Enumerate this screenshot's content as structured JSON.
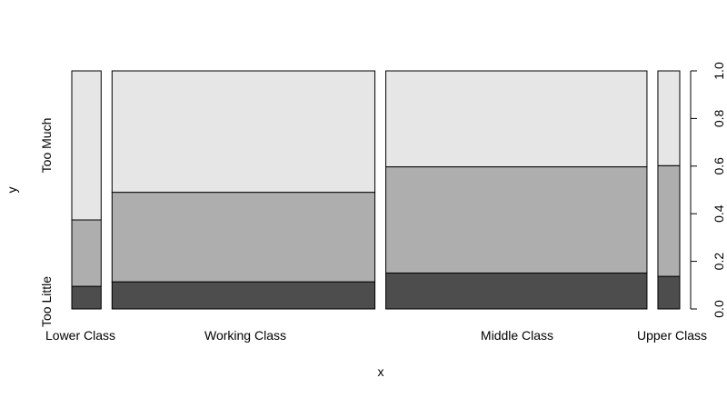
{
  "chart_data": {
    "type": "spineplot",
    "xlabel": "x",
    "ylabel": "y",
    "categories": [
      "Lower Class",
      "Working Class",
      "Middle Class",
      "Upper Class"
    ],
    "category_share": [
      0.051,
      0.457,
      0.454,
      0.038
    ],
    "y_levels_shown": [
      "Too Little",
      "Too Much"
    ],
    "series": [
      {
        "values": [
          0.095,
          0.114,
          0.151,
          0.137
        ],
        "color": "#4d4d4d"
      },
      {
        "values": [
          0.279,
          0.376,
          0.446,
          0.465
        ],
        "color": "#aeaeae"
      },
      {
        "values": [
          0.626,
          0.51,
          0.403,
          0.398
        ],
        "color": "#e6e6e6"
      }
    ],
    "right_axis": {
      "ticks": [
        "0.0",
        "0.2",
        "0.4",
        "0.6",
        "0.8",
        "1.0"
      ],
      "range": [
        0,
        1
      ]
    }
  }
}
